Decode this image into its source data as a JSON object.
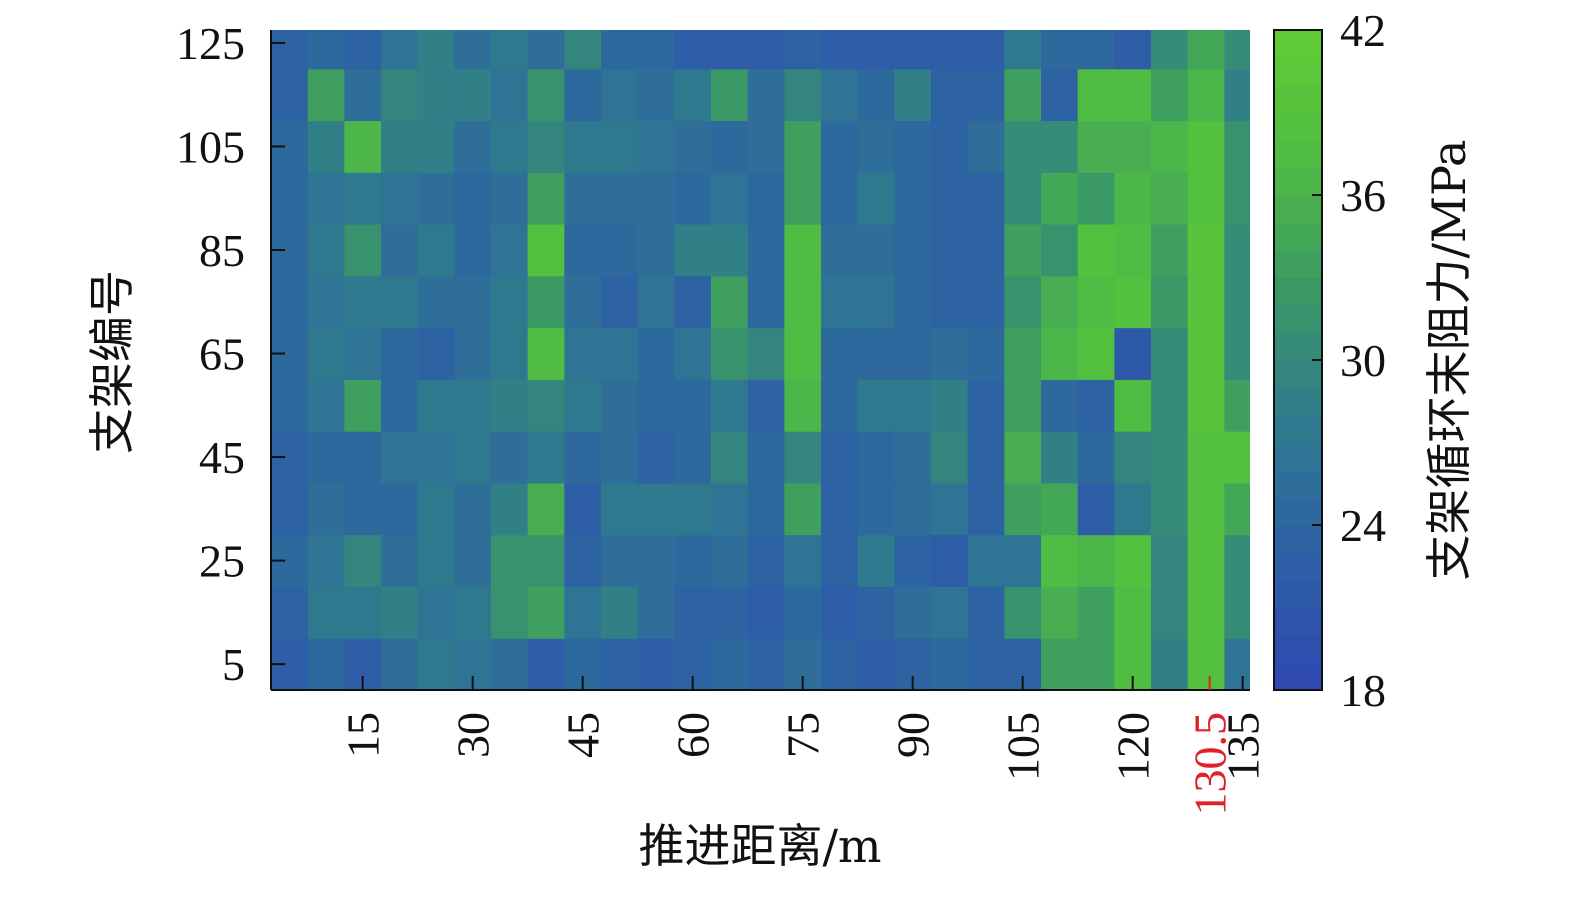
{
  "chart_data": {
    "type": "heatmap",
    "x_label": "推进距离/m",
    "y_label": "支架编号",
    "colorbar_label": "支架循环末阻力/MPa",
    "x": [
      5,
      10,
      15,
      20,
      25,
      30,
      35,
      40,
      45,
      50,
      55,
      60,
      65,
      70,
      75,
      80,
      85,
      90,
      95,
      100,
      105,
      110,
      115,
      120,
      125,
      130,
      135
    ],
    "y": [
      5,
      15,
      25,
      35,
      45,
      55,
      65,
      75,
      85,
      95,
      105,
      115,
      125
    ],
    "z": [
      [
        22,
        24,
        22,
        25,
        27,
        26,
        25,
        22,
        24,
        23,
        22,
        23,
        24,
        23,
        25,
        23,
        22,
        23,
        24,
        23,
        23,
        33,
        33,
        37,
        28,
        38,
        26
      ],
      [
        23,
        27,
        27,
        28,
        26,
        27,
        31,
        33,
        26,
        28,
        25,
        23,
        23,
        22,
        24,
        22,
        23,
        25,
        26,
        23,
        31,
        35,
        33,
        37,
        29,
        38,
        30
      ],
      [
        24,
        26,
        29,
        25,
        27,
        25,
        31,
        31,
        23,
        25,
        25,
        24,
        25,
        23,
        26,
        23,
        27,
        23,
        22,
        26,
        26,
        37,
        36,
        38,
        29,
        38,
        30
      ],
      [
        23,
        25,
        24,
        24,
        27,
        25,
        28,
        35,
        22,
        27,
        27,
        27,
        26,
        24,
        33,
        23,
        24,
        25,
        26,
        23,
        33,
        34,
        22,
        27,
        30,
        38,
        34
      ],
      [
        23,
        24,
        24,
        26,
        26,
        27,
        25,
        27,
        24,
        25,
        23,
        24,
        29,
        24,
        29,
        23,
        24,
        25,
        29,
        23,
        35,
        28,
        24,
        29,
        30,
        38,
        38
      ],
      [
        24,
        26,
        33,
        24,
        27,
        27,
        28,
        29,
        27,
        25,
        24,
        24,
        27,
        23,
        36,
        24,
        27,
        27,
        28,
        23,
        33,
        24,
        23,
        37,
        30,
        39,
        33
      ],
      [
        24,
        27,
        26,
        24,
        23,
        25,
        27,
        37,
        26,
        26,
        24,
        26,
        31,
        29,
        37,
        24,
        24,
        24,
        25,
        24,
        33,
        36,
        38,
        21,
        30,
        39,
        30
      ],
      [
        24,
        26,
        27,
        27,
        25,
        25,
        27,
        32,
        25,
        23,
        26,
        23,
        33,
        24,
        37,
        26,
        26,
        24,
        23,
        23,
        31,
        35,
        37,
        38,
        32,
        39,
        30
      ],
      [
        24,
        27,
        31,
        25,
        27,
        24,
        26,
        38,
        24,
        24,
        25,
        28,
        28,
        24,
        37,
        25,
        25,
        24,
        23,
        23,
        33,
        31,
        38,
        37,
        33,
        39,
        30
      ],
      [
        24,
        26,
        27,
        26,
        25,
        24,
        25,
        33,
        25,
        25,
        25,
        24,
        26,
        24,
        33,
        24,
        27,
        24,
        23,
        23,
        30,
        34,
        32,
        36,
        35,
        38,
        31
      ],
      [
        24,
        28,
        36,
        28,
        28,
        25,
        27,
        29,
        27,
        27,
        26,
        25,
        24,
        25,
        33,
        24,
        25,
        24,
        23,
        25,
        30,
        30,
        35,
        35,
        36,
        38,
        31
      ],
      [
        23,
        33,
        25,
        29,
        28,
        28,
        26,
        31,
        24,
        26,
        25,
        27,
        32,
        25,
        29,
        26,
        24,
        28,
        23,
        23,
        33,
        23,
        37,
        37,
        33,
        36,
        28
      ],
      [
        23,
        24,
        23,
        26,
        28,
        25,
        27,
        25,
        29,
        24,
        24,
        22,
        22,
        22,
        23,
        22,
        22,
        22,
        22,
        22,
        27,
        24,
        24,
        22,
        30,
        34,
        30
      ]
    ],
    "cell_width": 5,
    "cell_height": 10,
    "xlim": [
      2.5,
      136
    ],
    "ylim": [
      0,
      127.5
    ],
    "xticks": [
      15,
      30,
      45,
      60,
      75,
      90,
      105,
      120,
      {
        "value": 130.5,
        "color": "#e0202a"
      },
      135
    ],
    "yticks": [
      5,
      25,
      45,
      65,
      85,
      105,
      125
    ],
    "zlim": [
      18,
      42
    ],
    "zticks": [
      18,
      24,
      30,
      36,
      42
    ],
    "colormap": [
      "#3047b2",
      "#2d5fa6",
      "#2f7a8e",
      "#3a9766",
      "#4fbb45",
      "#62cc34"
    ],
    "colorbar_steps": 24
  }
}
